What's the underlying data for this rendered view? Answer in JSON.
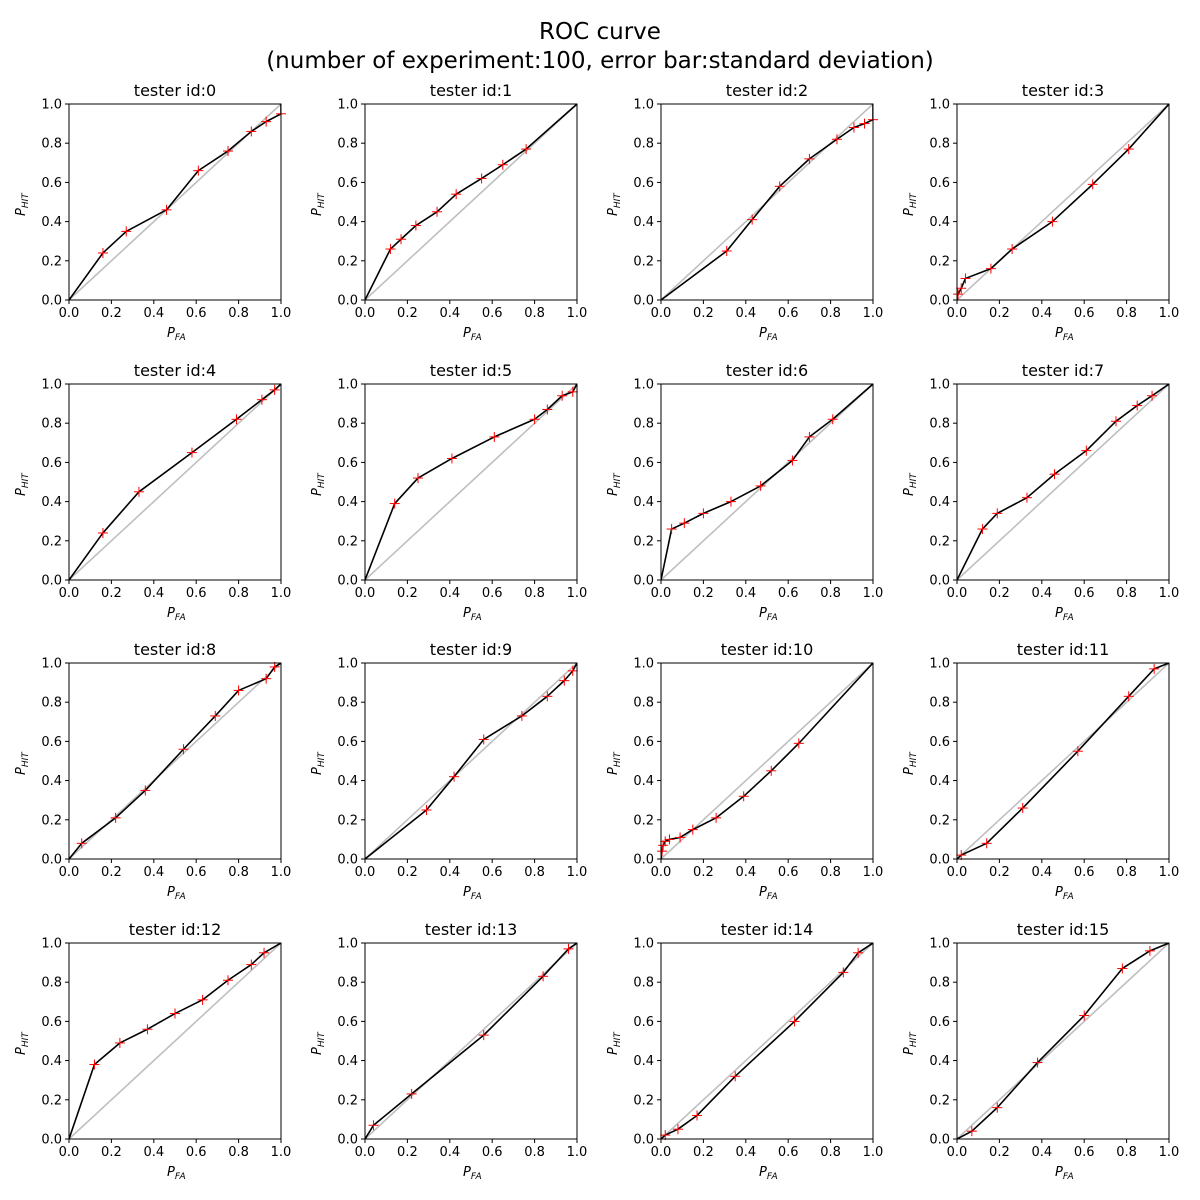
{
  "figure": {
    "title_line1": "ROC curve",
    "title_line2": "(number of experiment:100, error bar:standard deviation)"
  },
  "colors": {
    "curve": "#000000",
    "marker": "#ff0000",
    "diagonal": "#bfbfbf"
  },
  "chart_data": [
    {
      "type": "line",
      "title": "tester id:0",
      "xlabel": "P_FA",
      "ylabel": "P_HIT",
      "xlim": [
        0,
        1
      ],
      "ylim": [
        0,
        1
      ],
      "x": [
        0,
        0.16,
        0.27,
        0.46,
        0.61,
        0.75,
        0.86,
        0.93,
        1.0,
        1.0
      ],
      "y": [
        0,
        0.24,
        0.35,
        0.46,
        0.66,
        0.76,
        0.86,
        0.91,
        0.95,
        1.0
      ]
    },
    {
      "type": "line",
      "title": "tester id:1",
      "xlabel": "P_FA",
      "ylabel": "P_HIT",
      "xlim": [
        0,
        1
      ],
      "ylim": [
        0,
        1
      ],
      "x": [
        0,
        0.12,
        0.17,
        0.24,
        0.34,
        0.43,
        0.55,
        0.65,
        0.76,
        1.0
      ],
      "y": [
        0,
        0.26,
        0.31,
        0.38,
        0.45,
        0.54,
        0.62,
        0.69,
        0.77,
        1.0
      ]
    },
    {
      "type": "line",
      "title": "tester id:2",
      "xlabel": "P_FA",
      "ylabel": "P_HIT",
      "xlim": [
        0,
        1
      ],
      "ylim": [
        0,
        1
      ],
      "x": [
        0,
        0.31,
        0.43,
        0.56,
        0.7,
        0.83,
        0.91,
        0.96,
        1.0,
        1.0
      ],
      "y": [
        0,
        0.25,
        0.41,
        0.58,
        0.72,
        0.82,
        0.88,
        0.9,
        0.92,
        1.0
      ]
    },
    {
      "type": "line",
      "title": "tester id:3",
      "xlabel": "P_FA",
      "ylabel": "P_HIT",
      "xlim": [
        0,
        1
      ],
      "ylim": [
        0,
        1
      ],
      "x": [
        0,
        0.005,
        0.02,
        0.04,
        0.16,
        0.26,
        0.45,
        0.64,
        0.81,
        1.0
      ],
      "y": [
        0,
        0.03,
        0.06,
        0.11,
        0.16,
        0.26,
        0.4,
        0.59,
        0.77,
        1.0
      ]
    },
    {
      "type": "line",
      "title": "tester id:4",
      "xlabel": "P_FA",
      "ylabel": "P_HIT",
      "xlim": [
        0,
        1
      ],
      "ylim": [
        0,
        1
      ],
      "x": [
        0,
        0.16,
        0.33,
        0.58,
        0.79,
        0.91,
        0.97,
        1.0
      ],
      "y": [
        0,
        0.24,
        0.45,
        0.65,
        0.82,
        0.92,
        0.97,
        1.0
      ]
    },
    {
      "type": "line",
      "title": "tester id:5",
      "xlabel": "P_FA",
      "ylabel": "P_HIT",
      "xlim": [
        0,
        1
      ],
      "ylim": [
        0,
        1
      ],
      "x": [
        0,
        0.14,
        0.25,
        0.41,
        0.61,
        0.8,
        0.86,
        0.93,
        0.98,
        1.0
      ],
      "y": [
        0,
        0.39,
        0.52,
        0.62,
        0.73,
        0.82,
        0.87,
        0.94,
        0.96,
        1.0
      ]
    },
    {
      "type": "line",
      "title": "tester id:6",
      "xlabel": "P_FA",
      "ylabel": "P_HIT",
      "xlim": [
        0,
        1
      ],
      "ylim": [
        0,
        1
      ],
      "x": [
        0,
        0.05,
        0.11,
        0.2,
        0.33,
        0.47,
        0.62,
        0.7,
        0.81,
        1.0
      ],
      "y": [
        0,
        0.26,
        0.29,
        0.34,
        0.4,
        0.48,
        0.61,
        0.73,
        0.82,
        1.0
      ]
    },
    {
      "type": "line",
      "title": "tester id:7",
      "xlabel": "P_FA",
      "ylabel": "P_HIT",
      "xlim": [
        0,
        1
      ],
      "ylim": [
        0,
        1
      ],
      "x": [
        0,
        0.12,
        0.19,
        0.33,
        0.46,
        0.61,
        0.75,
        0.85,
        0.92,
        1.0
      ],
      "y": [
        0,
        0.26,
        0.34,
        0.42,
        0.54,
        0.66,
        0.81,
        0.89,
        0.94,
        1.0
      ]
    },
    {
      "type": "line",
      "title": "tester id:8",
      "xlabel": "P_FA",
      "ylabel": "P_HIT",
      "xlim": [
        0,
        1
      ],
      "ylim": [
        0,
        1
      ],
      "x": [
        0,
        0.06,
        0.22,
        0.36,
        0.54,
        0.69,
        0.8,
        0.93,
        0.97,
        1.0
      ],
      "y": [
        0,
        0.08,
        0.21,
        0.35,
        0.56,
        0.73,
        0.86,
        0.92,
        0.98,
        1.0
      ]
    },
    {
      "type": "line",
      "title": "tester id:9",
      "xlabel": "P_FA",
      "ylabel": "P_HIT",
      "xlim": [
        0,
        1
      ],
      "ylim": [
        0,
        1
      ],
      "x": [
        0,
        0.29,
        0.42,
        0.56,
        0.74,
        0.86,
        0.94,
        0.98,
        1.0
      ],
      "y": [
        0,
        0.25,
        0.42,
        0.61,
        0.73,
        0.83,
        0.91,
        0.96,
        1.0
      ]
    },
    {
      "type": "line",
      "title": "tester id:10",
      "xlabel": "P_FA",
      "ylabel": "P_HIT",
      "xlim": [
        0,
        1
      ],
      "ylim": [
        0,
        1
      ],
      "x": [
        0,
        0.005,
        0.01,
        0.02,
        0.04,
        0.09,
        0.15,
        0.26,
        0.39,
        0.52,
        0.65,
        1.0
      ],
      "y": [
        0,
        0.04,
        0.07,
        0.09,
        0.1,
        0.11,
        0.15,
        0.21,
        0.32,
        0.45,
        0.59,
        1.0
      ]
    },
    {
      "type": "line",
      "title": "tester id:11",
      "xlabel": "P_FA",
      "ylabel": "P_HIT",
      "xlim": [
        0,
        1
      ],
      "ylim": [
        0,
        1
      ],
      "x": [
        0,
        0.02,
        0.14,
        0.31,
        0.57,
        0.81,
        0.93,
        1.0
      ],
      "y": [
        0,
        0.02,
        0.08,
        0.26,
        0.55,
        0.83,
        0.97,
        1.0
      ]
    },
    {
      "type": "line",
      "title": "tester id:12",
      "xlabel": "P_FA",
      "ylabel": "P_HIT",
      "xlim": [
        0,
        1
      ],
      "ylim": [
        0,
        1
      ],
      "x": [
        0,
        0.12,
        0.24,
        0.37,
        0.5,
        0.63,
        0.75,
        0.86,
        0.92,
        1.0
      ],
      "y": [
        0,
        0.38,
        0.49,
        0.56,
        0.64,
        0.71,
        0.81,
        0.89,
        0.95,
        1.0
      ]
    },
    {
      "type": "line",
      "title": "tester id:13",
      "xlabel": "P_FA",
      "ylabel": "P_HIT",
      "xlim": [
        0,
        1
      ],
      "ylim": [
        0,
        1
      ],
      "x": [
        0,
        0.04,
        0.22,
        0.56,
        0.84,
        0.96,
        1.0
      ],
      "y": [
        0,
        0.07,
        0.23,
        0.53,
        0.83,
        0.97,
        1.0
      ]
    },
    {
      "type": "line",
      "title": "tester id:14",
      "xlabel": "P_FA",
      "ylabel": "P_HIT",
      "xlim": [
        0,
        1
      ],
      "ylim": [
        0,
        1
      ],
      "x": [
        0,
        0.02,
        0.08,
        0.17,
        0.35,
        0.63,
        0.86,
        0.93,
        1.0
      ],
      "y": [
        0,
        0.02,
        0.05,
        0.12,
        0.32,
        0.6,
        0.85,
        0.95,
        1.0
      ]
    },
    {
      "type": "line",
      "title": "tester id:15",
      "xlabel": "P_FA",
      "ylabel": "P_HIT",
      "xlim": [
        0,
        1
      ],
      "ylim": [
        0,
        1
      ],
      "x": [
        0,
        0.07,
        0.19,
        0.38,
        0.6,
        0.78,
        0.91,
        1.0
      ],
      "y": [
        0,
        0.04,
        0.16,
        0.39,
        0.63,
        0.87,
        0.96,
        1.0
      ]
    }
  ]
}
